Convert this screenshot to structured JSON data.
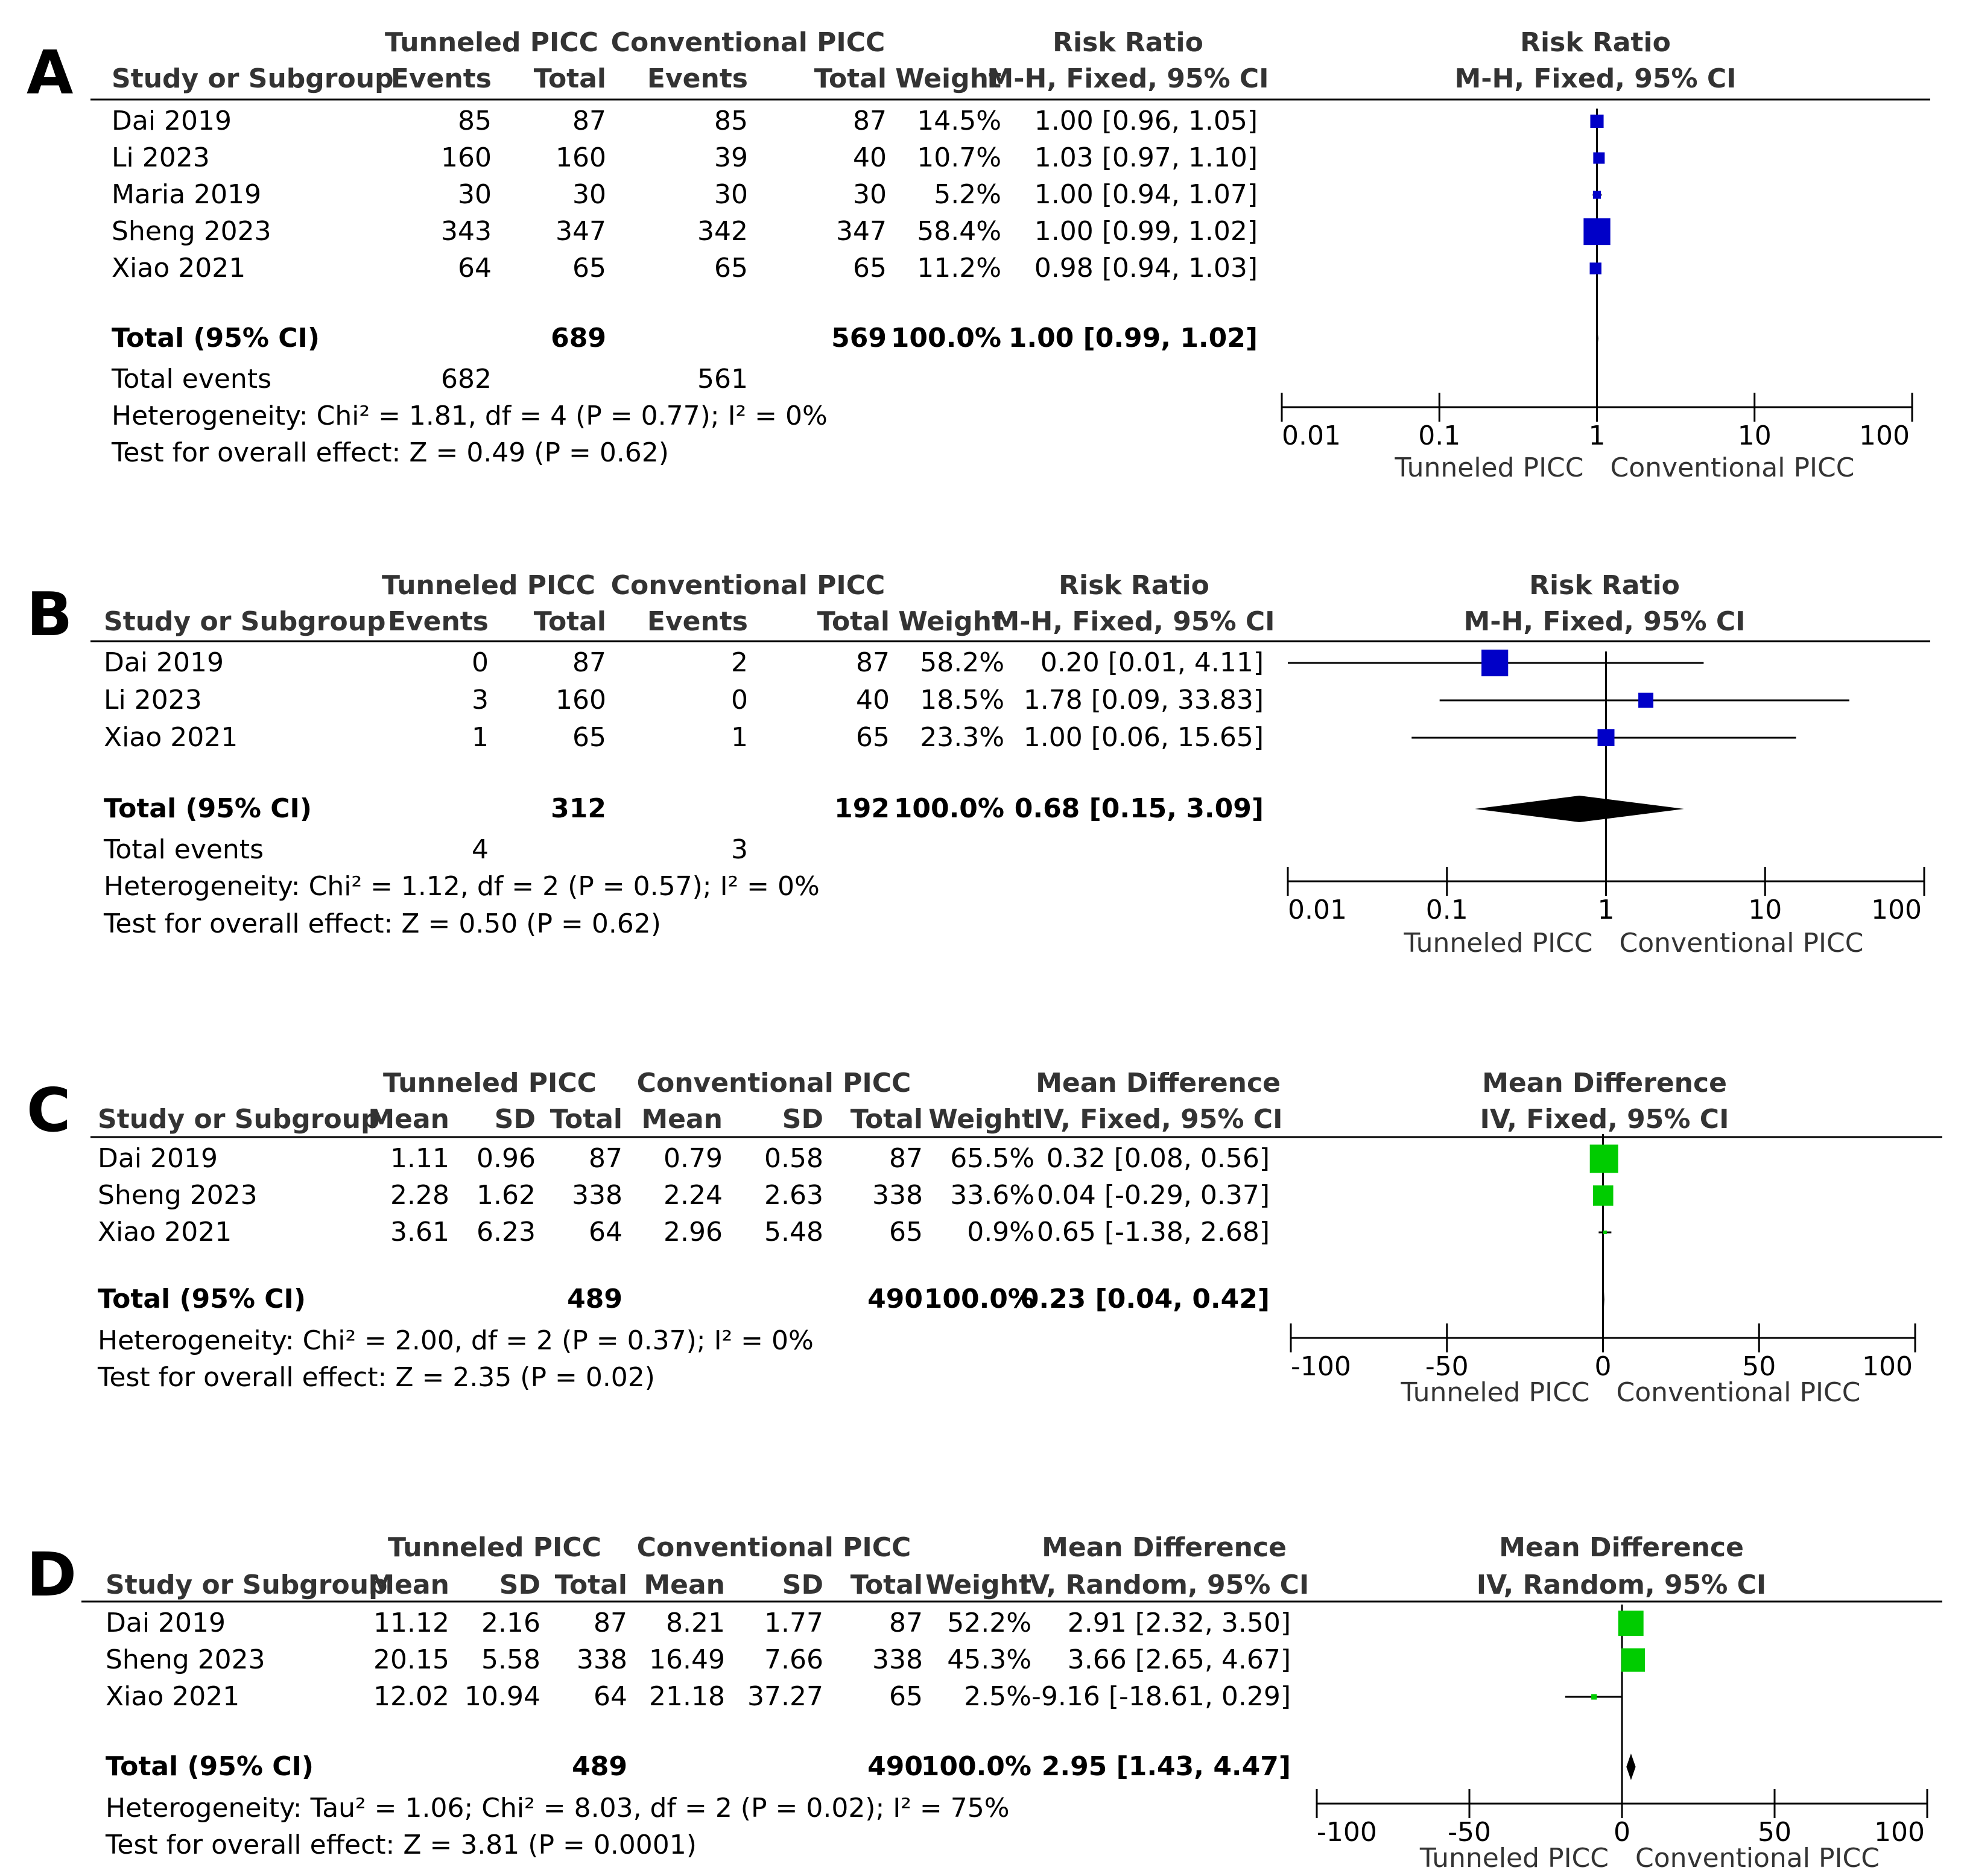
{
  "chart_data": [
    {
      "type": "forest",
      "panel": "A",
      "effect_kind": "dichotomous",
      "group_headers": [
        "Tunneled PICC",
        "Conventional PICC"
      ],
      "col_headers": [
        "Study or Subgroup",
        "Events",
        "Total",
        "Events",
        "Total",
        "Weight"
      ],
      "effect_header_1": "Risk Ratio",
      "effect_header_2": "M-H, Fixed, 95% CI",
      "plot_header_1": "Risk Ratio",
      "plot_header_2": "M-H, Fixed, 95% CI",
      "scale": "log",
      "xlim": [
        0.01,
        100
      ],
      "null_value": 1,
      "ticks": [
        0.01,
        0.1,
        1,
        10,
        100
      ],
      "tick_labels": [
        "0.01",
        "0.1",
        "1",
        "10",
        "100"
      ],
      "favours_left": "Tunneled PICC",
      "favours_right": "Conventional PICC",
      "marker_color": "#0000c8",
      "diamond_color": "#000000",
      "studies": [
        {
          "name": "Dai 2019",
          "cols": [
            "85",
            "87",
            "85",
            "87"
          ],
          "weight": "14.5%",
          "ci_text": "1.00 [0.96, 1.05]",
          "est": 1.0,
          "lo": 0.96,
          "hi": 1.05,
          "w": 14.5
        },
        {
          "name": "Li 2023",
          "cols": [
            "160",
            "160",
            "39",
            "40"
          ],
          "weight": "10.7%",
          "ci_text": "1.03 [0.97, 1.10]",
          "est": 1.03,
          "lo": 0.97,
          "hi": 1.1,
          "w": 10.7
        },
        {
          "name": "Maria 2019",
          "cols": [
            "30",
            "30",
            "30",
            "30"
          ],
          "weight": "5.2%",
          "ci_text": "1.00 [0.94, 1.07]",
          "est": 1.0,
          "lo": 0.94,
          "hi": 1.07,
          "w": 5.2
        },
        {
          "name": "Sheng 2023",
          "cols": [
            "343",
            "347",
            "342",
            "347"
          ],
          "weight": "58.4%",
          "ci_text": "1.00 [0.99, 1.02]",
          "est": 1.0,
          "lo": 0.99,
          "hi": 1.02,
          "w": 58.4
        },
        {
          "name": "Xiao 2021",
          "cols": [
            "64",
            "65",
            "65",
            "65"
          ],
          "weight": "11.2%",
          "ci_text": "0.98 [0.94, 1.03]",
          "est": 0.98,
          "lo": 0.94,
          "hi": 1.03,
          "w": 11.2
        }
      ],
      "total": {
        "label": "Total (95% CI)",
        "cols": [
          "",
          "689",
          "",
          "569"
        ],
        "weight": "100.0%",
        "ci_text": "1.00 [0.99, 1.02]",
        "est": 1.0,
        "lo": 0.99,
        "hi": 1.02
      },
      "total_events": {
        "label": "Total events",
        "cols": [
          "682",
          "",
          "561",
          ""
        ]
      },
      "heterogeneity": "Heterogeneity: Chi² = 1.81, df = 4 (P = 0.77); I² = 0%",
      "overall_effect": "Test for overall effect: Z = 0.49 (P = 0.62)"
    },
    {
      "type": "forest",
      "panel": "B",
      "effect_kind": "dichotomous",
      "group_headers": [
        "Tunneled PICC",
        "Conventional PICC"
      ],
      "col_headers": [
        "Study or Subgroup",
        "Events",
        "Total",
        "Events",
        "Total",
        "Weight"
      ],
      "effect_header_1": "Risk Ratio",
      "effect_header_2": "M-H, Fixed, 95% CI",
      "plot_header_1": "Risk Ratio",
      "plot_header_2": "M-H, Fixed, 95% CI",
      "scale": "log",
      "xlim": [
        0.01,
        100
      ],
      "null_value": 1,
      "ticks": [
        0.01,
        0.1,
        1,
        10,
        100
      ],
      "tick_labels": [
        "0.01",
        "0.1",
        "1",
        "10",
        "100"
      ],
      "favours_left": "Tunneled PICC",
      "favours_right": "Conventional PICC",
      "marker_color": "#0000c8",
      "diamond_color": "#000000",
      "studies": [
        {
          "name": "Dai 2019",
          "cols": [
            "0",
            "87",
            "2",
            "87"
          ],
          "weight": "58.2%",
          "ci_text": "0.20 [0.01, 4.11]",
          "est": 0.2,
          "lo": 0.01,
          "hi": 4.11,
          "w": 58.2
        },
        {
          "name": "Li 2023",
          "cols": [
            "3",
            "160",
            "0",
            "40"
          ],
          "weight": "18.5%",
          "ci_text": "1.78 [0.09, 33.83]",
          "est": 1.78,
          "lo": 0.09,
          "hi": 33.83,
          "w": 18.5
        },
        {
          "name": "Xiao 2021",
          "cols": [
            "1",
            "65",
            "1",
            "65"
          ],
          "weight": "23.3%",
          "ci_text": "1.00 [0.06, 15.65]",
          "est": 1.0,
          "lo": 0.06,
          "hi": 15.65,
          "w": 23.3
        }
      ],
      "total": {
        "label": "Total (95% CI)",
        "cols": [
          "",
          "312",
          "",
          "192"
        ],
        "weight": "100.0%",
        "ci_text": "0.68 [0.15, 3.09]",
        "est": 0.68,
        "lo": 0.15,
        "hi": 3.09
      },
      "total_events": {
        "label": "Total events",
        "cols": [
          "4",
          "",
          "3",
          ""
        ]
      },
      "heterogeneity": "Heterogeneity: Chi² = 1.12, df = 2 (P = 0.57); I² = 0%",
      "overall_effect": "Test for overall effect: Z = 0.50 (P = 0.62)"
    },
    {
      "type": "forest",
      "panel": "C",
      "effect_kind": "continuous",
      "group_headers": [
        "Tunneled PICC",
        "Conventional PICC"
      ],
      "col_headers": [
        "Study or Subgroup",
        "Mean",
        "SD",
        "Total",
        "Mean",
        "SD",
        "Total",
        "Weight"
      ],
      "effect_header_1": "Mean Difference",
      "effect_header_2": "IV, Fixed, 95% CI",
      "plot_header_1": "Mean Difference",
      "plot_header_2": "IV, Fixed, 95% CI",
      "scale": "linear",
      "xlim": [
        -100,
        100
      ],
      "null_value": 0,
      "ticks": [
        -100,
        -50,
        0,
        50,
        100
      ],
      "tick_labels": [
        "-100",
        "-50",
        "0",
        "50",
        "100"
      ],
      "favours_left": "Tunneled PICC",
      "favours_right": "Conventional PICC",
      "marker_color": "#00cc00",
      "diamond_color": "#000000",
      "studies": [
        {
          "name": "Dai 2019",
          "cols": [
            "1.11",
            "0.96",
            "87",
            "0.79",
            "0.58",
            "87"
          ],
          "weight": "65.5%",
          "ci_text": "0.32 [0.08, 0.56]",
          "est": 0.32,
          "lo": 0.08,
          "hi": 0.56,
          "w": 65.5
        },
        {
          "name": "Sheng 2023",
          "cols": [
            "2.28",
            "1.62",
            "338",
            "2.24",
            "2.63",
            "338"
          ],
          "weight": "33.6%",
          "ci_text": "0.04 [-0.29, 0.37]",
          "est": 0.04,
          "lo": -0.29,
          "hi": 0.37,
          "w": 33.6
        },
        {
          "name": "Xiao 2021",
          "cols": [
            "3.61",
            "6.23",
            "64",
            "2.96",
            "5.48",
            "65"
          ],
          "weight": "0.9%",
          "ci_text": "0.65 [-1.38, 2.68]",
          "est": 0.65,
          "lo": -1.38,
          "hi": 2.68,
          "w": 0.9
        }
      ],
      "total": {
        "label": "Total (95% CI)",
        "cols": [
          "",
          "",
          "489",
          "",
          "",
          "490"
        ],
        "weight": "100.0%",
        "ci_text": "0.23 [0.04, 0.42]",
        "est": 0.23,
        "lo": 0.04,
        "hi": 0.42
      },
      "total_events": null,
      "heterogeneity": "Heterogeneity: Chi² = 2.00, df = 2 (P = 0.37); I² = 0%",
      "overall_effect": "Test for overall effect: Z = 2.35 (P = 0.02)"
    },
    {
      "type": "forest",
      "panel": "D",
      "effect_kind": "continuous",
      "group_headers": [
        "Tunneled PICC",
        "Conventional PICC"
      ],
      "col_headers": [
        "Study or Subgroup",
        "Mean",
        "SD",
        "Total",
        "Mean",
        "SD",
        "Total",
        "Weight"
      ],
      "effect_header_1": "Mean Difference",
      "effect_header_2": "IV, Random, 95% CI",
      "plot_header_1": "Mean Difference",
      "plot_header_2": "IV, Random, 95% CI",
      "scale": "linear",
      "xlim": [
        -100,
        100
      ],
      "null_value": 0,
      "ticks": [
        -100,
        -50,
        0,
        50,
        100
      ],
      "tick_labels": [
        "-100",
        "-50",
        "0",
        "50",
        "100"
      ],
      "favours_left": "Tunneled PICC",
      "favours_right": "Conventional PICC",
      "marker_color": "#00cc00",
      "diamond_color": "#000000",
      "studies": [
        {
          "name": "Dai 2019",
          "cols": [
            "11.12",
            "2.16",
            "87",
            "8.21",
            "1.77",
            "87"
          ],
          "weight": "52.2%",
          "ci_text": "2.91 [2.32, 3.50]",
          "est": 2.91,
          "lo": 2.32,
          "hi": 3.5,
          "w": 52.2
        },
        {
          "name": "Sheng 2023",
          "cols": [
            "20.15",
            "5.58",
            "338",
            "16.49",
            "7.66",
            "338"
          ],
          "weight": "45.3%",
          "ci_text": "3.66 [2.65, 4.67]",
          "est": 3.66,
          "lo": 2.65,
          "hi": 4.67,
          "w": 45.3
        },
        {
          "name": "Xiao 2021",
          "cols": [
            "12.02",
            "10.94",
            "64",
            "21.18",
            "37.27",
            "65"
          ],
          "weight": "2.5%",
          "ci_text": "-9.16 [-18.61, 0.29]",
          "est": -9.16,
          "lo": -18.61,
          "hi": 0.29,
          "w": 2.5
        }
      ],
      "total": {
        "label": "Total (95% CI)",
        "cols": [
          "",
          "",
          "489",
          "",
          "",
          "490"
        ],
        "weight": "100.0%",
        "ci_text": "2.95 [1.43, 4.47]",
        "est": 2.95,
        "lo": 1.43,
        "hi": 4.47
      },
      "total_events": null,
      "heterogeneity": "Heterogeneity: Tau² = 1.06; Chi² = 8.03, df = 2 (P = 0.02); I² = 75%",
      "overall_effect": "Test for overall effect: Z = 3.81 (P = 0.0001)"
    }
  ]
}
